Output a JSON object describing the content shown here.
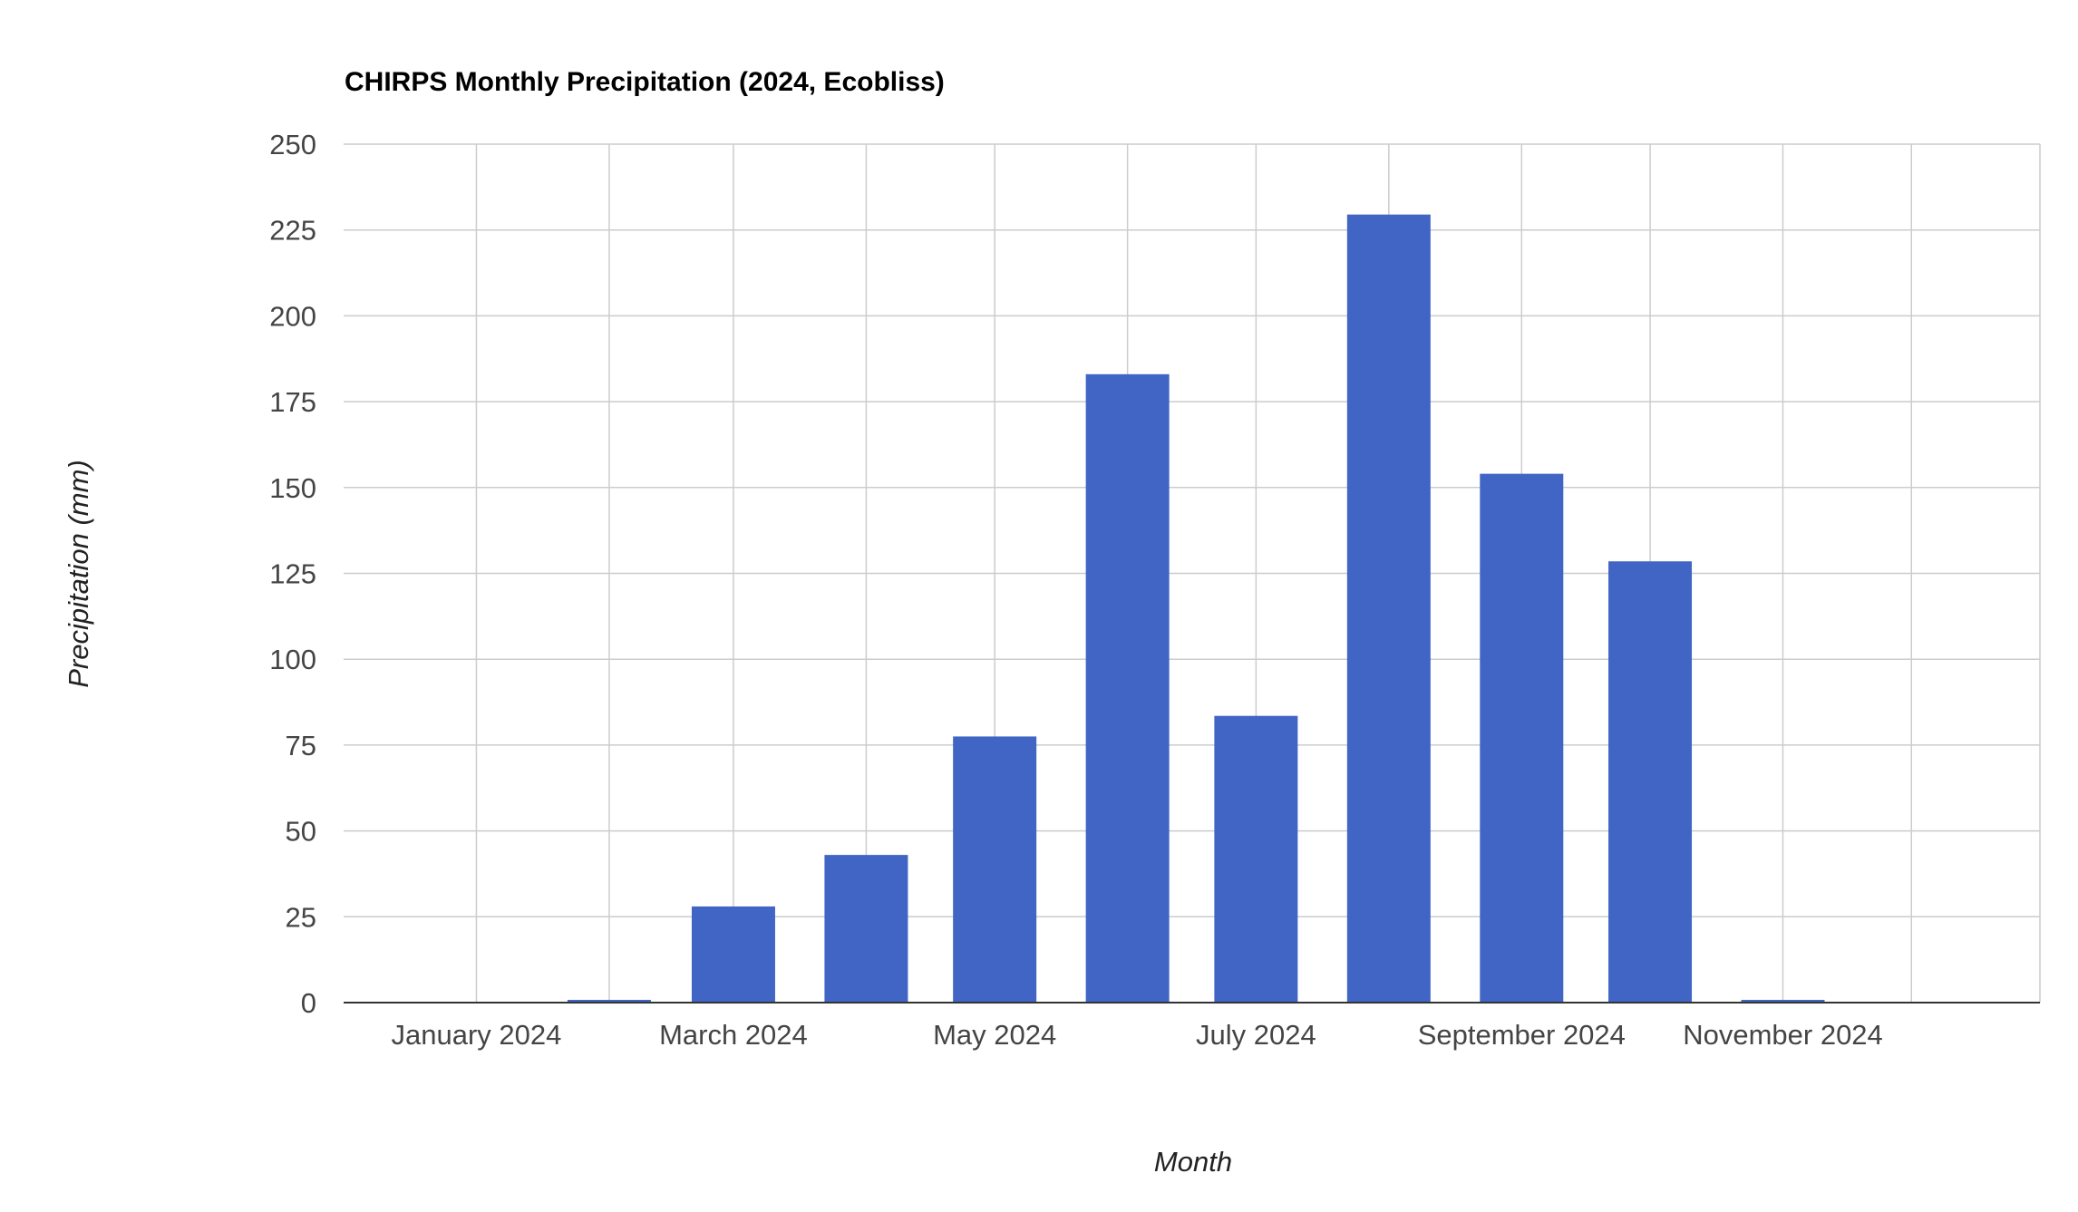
{
  "chart_data": {
    "type": "bar",
    "title": "CHIRPS Monthly Precipitation (2024, Ecobliss)",
    "xlabel": "Month",
    "ylabel": "Precipitation (mm)",
    "ylim": [
      0,
      250
    ],
    "yticks": [
      0,
      25,
      50,
      75,
      100,
      125,
      150,
      175,
      200,
      225,
      250
    ],
    "grid": true,
    "legend": "none",
    "x_date_range": [
      "2023-12-01",
      "2024-12-31"
    ],
    "categories": [
      "2024-01",
      "2024-02",
      "2024-03",
      "2024-04",
      "2024-05",
      "2024-06",
      "2024-07",
      "2024-08",
      "2024-09",
      "2024-10",
      "2024-11",
      "2024-12"
    ],
    "values": [
      0,
      0.8,
      28,
      43,
      77.5,
      183,
      83.5,
      229.5,
      154,
      128.5,
      0.8,
      0
    ],
    "xticks": [
      {
        "date": "2024-01-01",
        "label": "January 2024"
      },
      {
        "date": "2024-02-01",
        "label": ""
      },
      {
        "date": "2024-03-01",
        "label": "March 2024"
      },
      {
        "date": "2024-04-01",
        "label": ""
      },
      {
        "date": "2024-05-01",
        "label": "May 2024"
      },
      {
        "date": "2024-06-01",
        "label": ""
      },
      {
        "date": "2024-07-01",
        "label": "July 2024"
      },
      {
        "date": "2024-08-01",
        "label": ""
      },
      {
        "date": "2024-09-01",
        "label": "September 2024"
      },
      {
        "date": "2024-10-01",
        "label": ""
      },
      {
        "date": "2024-11-01",
        "label": "November 2024"
      },
      {
        "date": "2024-12-01",
        "label": ""
      }
    ],
    "colors": {
      "bar": "#4165c5",
      "grid": "#cccccc",
      "baseline": "#333333"
    }
  }
}
